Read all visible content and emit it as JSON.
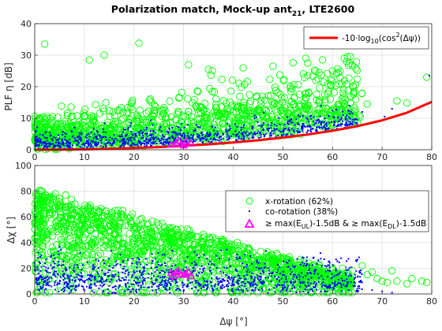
{
  "figure": {
    "title": "Polarization match, Mock-up ant",
    "title_sub": "21",
    "title_tail": ", LTE2600",
    "xlabel": "Δψ [°]"
  },
  "colors": {
    "x_rotation": "#00ff00",
    "co_rotation": "#0000ff",
    "theory": "#ff0000",
    "highlight": "#ff00ff"
  },
  "chart_data": [
    {
      "type": "scatter",
      "panel": "top",
      "ylabel": "PLF η [dB]",
      "xlim": [
        0,
        80
      ],
      "ylim": [
        0,
        40
      ],
      "xticks": [
        0,
        10,
        20,
        30,
        40,
        50,
        60,
        70,
        80
      ],
      "yticks": [
        0,
        10,
        20,
        30,
        40
      ],
      "grid": true,
      "legend_position": "top-right",
      "legend": [
        {
          "key": "theory",
          "label": "-10·log10(cos²(Δψ))"
        }
      ],
      "theory_curve": {
        "x": [
          0,
          5,
          10,
          15,
          20,
          25,
          30,
          35,
          40,
          45,
          50,
          55,
          60,
          65,
          70,
          75,
          80
        ],
        "y": [
          0,
          0.03,
          0.13,
          0.3,
          0.54,
          0.86,
          1.25,
          1.73,
          2.32,
          3.01,
          3.84,
          4.83,
          6.02,
          7.47,
          9.32,
          11.74,
          15.19
        ]
      },
      "highlight_points": {
        "x": [
          27.5,
          28.5,
          29.5,
          30.5,
          31.5,
          29,
          30
        ],
        "y": [
          1.6,
          2.2,
          1.9,
          2.6,
          2.0,
          2.9,
          1.4
        ]
      },
      "outlier_points": {
        "x_rotation": {
          "x": [
            2.0,
            21.0,
            63.0,
            55.0,
            48.0,
            14.0,
            31.0,
            42.0,
            11.0,
            35.0,
            60.0,
            67.0,
            73.0,
            75.0,
            79.0
          ],
          "y": [
            33.5,
            33.8,
            29.5,
            27.5,
            26.5,
            30.0,
            27.0,
            26.0,
            28.5,
            25.5,
            25.0,
            14.5,
            15.5,
            14.8,
            23.0
          ]
        },
        "co_rotation": {
          "x": [
            79.5,
            72.0,
            70.5,
            66.0,
            64.0
          ],
          "y": [
            23.5,
            13.0,
            10.5,
            12.0,
            11.5
          ]
        }
      }
    },
    {
      "type": "scatter",
      "panel": "bottom",
      "ylabel": "Δχ [°]",
      "xlim": [
        0,
        80
      ],
      "ylim": [
        0,
        100
      ],
      "xticks": [
        0,
        10,
        20,
        30,
        40,
        50,
        60,
        70,
        80
      ],
      "yticks": [
        0,
        20,
        40,
        60,
        80,
        100
      ],
      "grid": true,
      "legend_position": "top-right",
      "legend": [
        {
          "key": "x_rotation",
          "label": "x-rotation (62%)"
        },
        {
          "key": "co_rotation",
          "label": "co-rotation (38%)"
        },
        {
          "key": "highlight",
          "label": "≥ max(E_UL)-1.5dB & ≥ max(E_DL)-1.5dB"
        }
      ],
      "highlight_points": {
        "x": [
          27.5,
          28.5,
          29.5,
          30.5,
          31.5,
          29,
          30,
          28,
          31
        ],
        "y": [
          16,
          17,
          15,
          16,
          14,
          18,
          15,
          14,
          17
        ]
      },
      "outlier_points": {
        "x_rotation": {
          "x": [
            62,
            64,
            66,
            67,
            68,
            69,
            70,
            71,
            73,
            75,
            76,
            78,
            79,
            72
          ],
          "y": [
            20,
            18,
            22,
            15,
            17,
            12,
            10,
            9,
            10,
            8,
            12,
            10,
            9,
            18
          ]
        },
        "co_rotation": {
          "x": [
            65,
            68,
            70,
            72
          ],
          "y": [
            4,
            3,
            2,
            1
          ]
        }
      }
    }
  ],
  "legend_text": {
    "top_theory": {
      "pre": "-10·log",
      "sub": "10",
      "mid": "(cos",
      "sup": "2",
      "post": "(Δψ))"
    },
    "bottom_x": "x-rotation (62%)",
    "bottom_co": "co-rotation (38%)",
    "bottom_hl": {
      "a": "≥ max(E",
      "sub1": "UL",
      "b": ")-1.5dB & ≥ max(E",
      "sub2": "DL",
      "c": ")-1.5dB"
    }
  }
}
